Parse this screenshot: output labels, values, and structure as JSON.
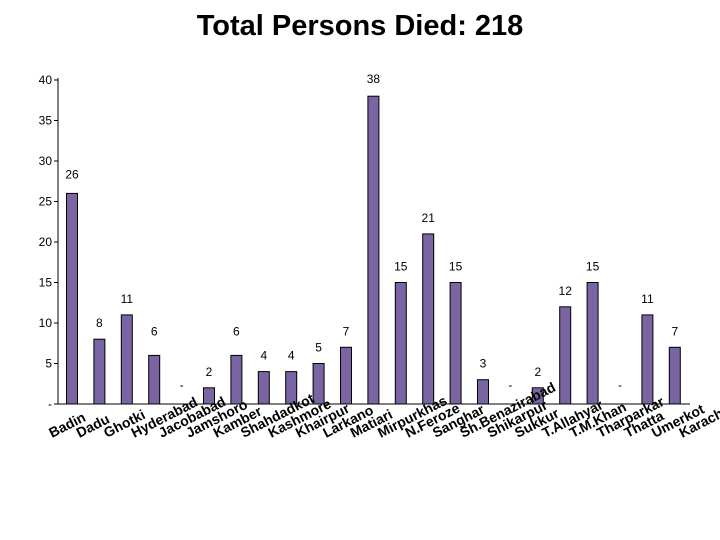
{
  "chart_data": {
    "type": "bar",
    "title": "Total Persons Died: 218",
    "categories": [
      "Badin",
      "Dadu",
      "Ghotki",
      "Hyderabad",
      "Jacobabad",
      "Jamshoro",
      "Kamber",
      "Shahdadkot",
      "Kashmore",
      "Khairpur",
      "Larkano",
      "Matiari",
      "Mirpurkhas",
      "N.Feroze",
      "Sanghar",
      "Sh.Benazirabad",
      "Shikarpur",
      "Sukkur",
      "T.Allahyar",
      "T.M.Khan",
      "Tharparkar",
      "Thatta",
      "Umerkot",
      "Karachi"
    ],
    "values": [
      26,
      8,
      11,
      6,
      0,
      2,
      6,
      4,
      4,
      5,
      7,
      38,
      15,
      21,
      15,
      3,
      0,
      2,
      12,
      15,
      0,
      11,
      7,
      null
    ],
    "data_labels": [
      "26",
      "8",
      "11",
      "6",
      "-",
      "2",
      "6",
      "4",
      "4",
      "5",
      "7",
      "38",
      "15",
      "21",
      "15",
      "3",
      "-",
      "2",
      "12",
      "15",
      "-",
      "11",
      "7",
      ""
    ],
    "yticks": [
      "-",
      "5",
      "10",
      "15",
      "20",
      "25",
      "30",
      "35",
      "40"
    ],
    "ylim": [
      0,
      40
    ],
    "bar_color": "#7B64A3",
    "bar_stroke": "#000000"
  }
}
